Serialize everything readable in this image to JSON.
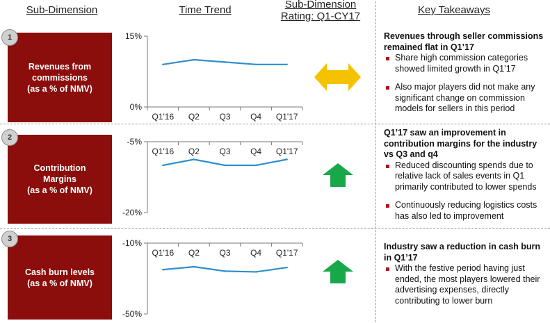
{
  "headers": {
    "sub_dimension": "Sub-Dimension",
    "time_trend": "Time Trend",
    "rating_line1": "Sub-Dimension",
    "rating_line2": "Rating: Q1-CY17",
    "key_takeaways": "Key Takeaways"
  },
  "colors": {
    "box": "#8b0d0c",
    "line": "#2f8fce",
    "arrow_flat": "#f5c200",
    "arrow_up": "#18a84a",
    "bullet": "#b0131a"
  },
  "rows": [
    {
      "number": "1",
      "label_line1": "Revenues from",
      "label_line2": "commissions",
      "label_line3": "(as a % of NMV)",
      "rating": "flat",
      "rating_icon": "left-right-arrow-icon",
      "takeaway_title": "Revenues through seller commissions remained flat in Q1’17",
      "bullets": [
        "Share high commission categories showed limited growth in Q1’17",
        "Also major players did not make any significant change on commission models for sellers in this period"
      ]
    },
    {
      "number": "2",
      "label_line1": "Contribution",
      "label_line2": "Margins",
      "label_line3": "(as a % of NMV)",
      "rating": "up",
      "rating_icon": "up-arrow-icon",
      "takeaway_title": "Q1’17 saw an improvement in contribution margins for the industry vs Q3 and q4",
      "bullets": [
        "Reduced discounting spends due to relative lack of sales events in Q1 primarily contributed to lower spends",
        "Continuously reducing logistics costs has also led to improvement"
      ]
    },
    {
      "number": "3",
      "label_line1": "Cash burn levels",
      "label_line2": "(as a % of NMV)",
      "label_line3": "",
      "rating": "up",
      "rating_icon": "up-arrow-icon",
      "takeaway_title": "Industry saw a reduction in cash burn in Q1’17",
      "bullets": [
        "With the festive period having just ended, the most players lowered their advertising expenses, directly contributing to lower burn"
      ]
    }
  ],
  "chart_data": [
    {
      "type": "line",
      "categories": [
        "Q1'16",
        "Q2",
        "Q3",
        "Q4",
        "Q1'17"
      ],
      "series": [
        {
          "values": [
            9,
            10,
            9.5,
            9,
            9
          ]
        }
      ],
      "ylim": [
        0,
        15
      ],
      "ytick_labels": [
        "15%",
        "0%"
      ],
      "x_axis_position": "bottom"
    },
    {
      "type": "line",
      "categories": [
        "Q1'16",
        "Q2",
        "Q3",
        "Q4",
        "Q1'17"
      ],
      "series": [
        {
          "values": [
            -8,
            -6.5,
            -8,
            -8,
            -6.5
          ]
        }
      ],
      "ylim": [
        -20,
        -2
      ],
      "ytick_labels": [
        "-5%",
        "-20%"
      ],
      "x_axis_position": "top"
    },
    {
      "type": "line",
      "categories": [
        "Q1'16",
        "Q2",
        "Q3",
        "Q4",
        "Q1'17"
      ],
      "series": [
        {
          "values": [
            -20,
            -18,
            -21,
            -21.5,
            -18.5
          ]
        }
      ],
      "ylim": [
        -50,
        -2
      ],
      "ytick_labels": [
        "-10%",
        "-50%"
      ],
      "x_axis_position": "top"
    }
  ]
}
